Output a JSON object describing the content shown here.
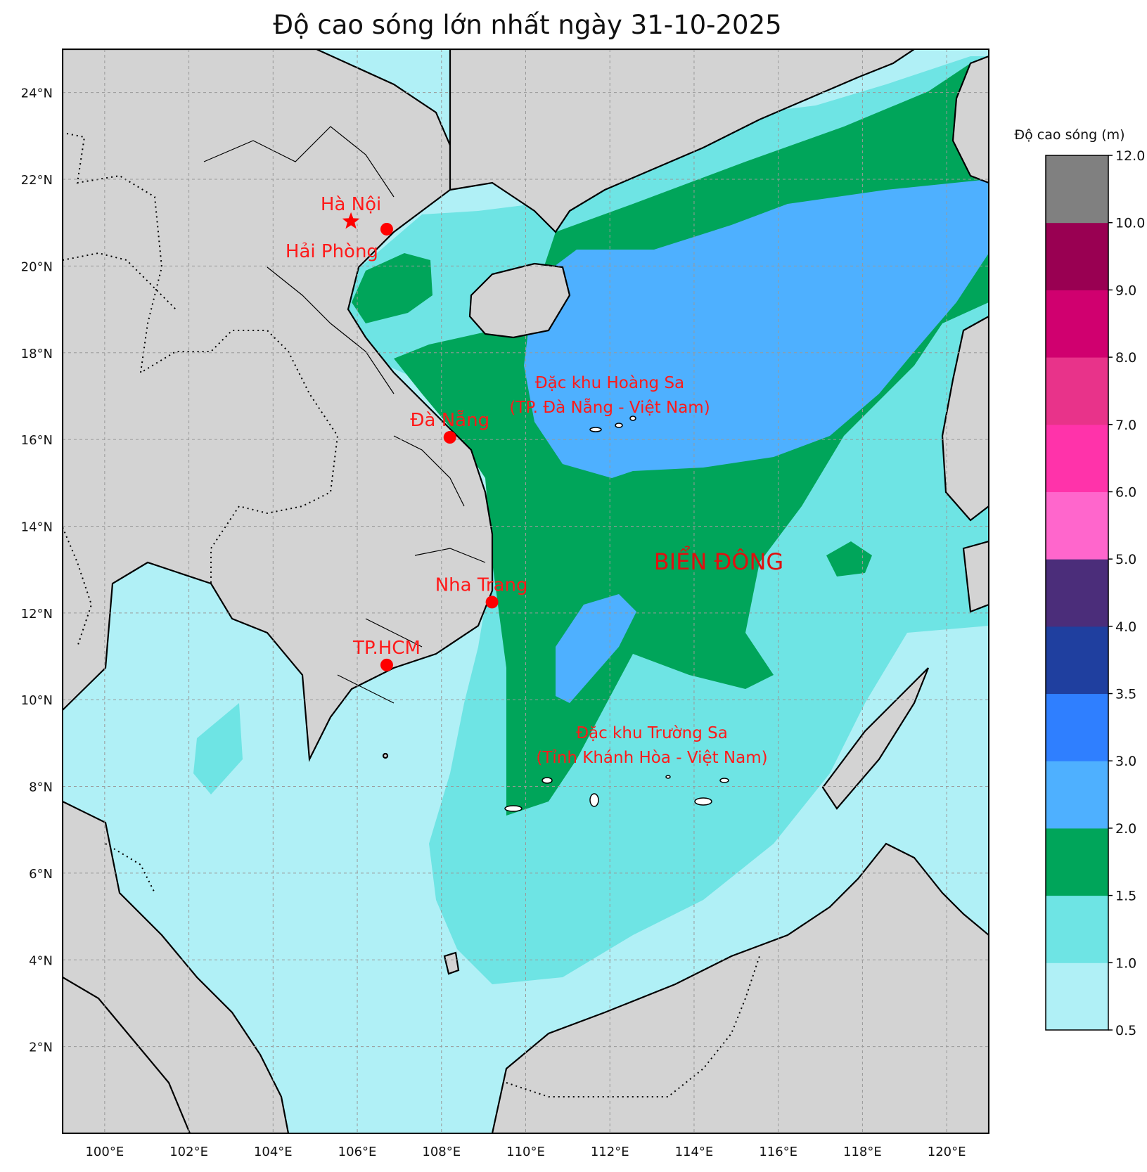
{
  "title": "Độ cao sóng lớn nhất ngày 31-10-2025",
  "lat_ticks": [
    "2°N",
    "4°N",
    "6°N",
    "8°N",
    "10°N",
    "12°N",
    "14°N",
    "16°N",
    "18°N",
    "20°N",
    "22°N",
    "24°N"
  ],
  "lon_ticks": [
    "100°E",
    "102°E",
    "104°E",
    "106°E",
    "108°E",
    "110°E",
    "112°E",
    "114°E",
    "116°E",
    "118°E",
    "120°E"
  ],
  "extent": {
    "lon_min": 99,
    "lon_max": 121,
    "lat_min": 0,
    "lat_max": 25
  },
  "cities": [
    {
      "name": "Hà Nội",
      "lon": 105.85,
      "lat": 21.03,
      "marker": "star"
    },
    {
      "name": "Hải Phòng",
      "lon": 106.7,
      "lat": 20.85,
      "marker": "dot"
    },
    {
      "name": "Đà Nẵng",
      "lon": 108.2,
      "lat": 16.05,
      "marker": "dot"
    },
    {
      "name": "Nha Trang",
      "lon": 109.2,
      "lat": 12.25,
      "marker": "dot"
    },
    {
      "name": "TP.HCM",
      "lon": 106.7,
      "lat": 10.8,
      "marker": "dot"
    }
  ],
  "regions": {
    "hoang_sa_line1": "Đặc khu Hoàng Sa",
    "hoang_sa_line2": "(TP. Đà Nẵng - Việt Nam)",
    "truong_sa_line1": "Đặc khu Trường Sa",
    "truong_sa_line2": "(Tỉnh Khánh Hòa - Việt Nam)",
    "sea_name": "BIỂN ĐÔNG"
  },
  "colorbar": {
    "title": "Độ cao sóng (m)",
    "levels": [
      "0.5",
      "1.0",
      "1.5",
      "2.0",
      "3.0",
      "3.5",
      "4.0",
      "5.0",
      "6.0",
      "7.0",
      "8.0",
      "9.0",
      "10.0",
      "12.0"
    ],
    "colors": [
      "#b0f0f6",
      "#6ee4e4",
      "#00a55a",
      "#4eb0ff",
      "#2f7fff",
      "#1f3f9f",
      "#4b2d7a",
      "#ff66cc",
      "#ff33aa",
      "#e8338a",
      "#d0006f",
      "#990052",
      "#808080"
    ]
  },
  "colors": {
    "land": "#d3d3d3",
    "wave_0_5_1": "#b0f0f6",
    "wave_1_1_5": "#6ee4e4",
    "wave_1_5_2": "#00a55a",
    "wave_2_3": "#4eb0ff",
    "marker": "#ff0000"
  }
}
